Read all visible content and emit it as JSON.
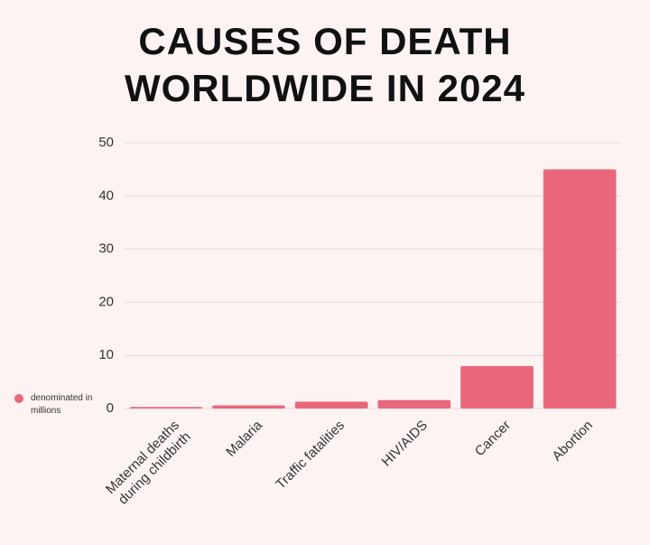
{
  "chart_data": {
    "type": "bar",
    "title": "CAUSES OF DEATH WORLDWIDE IN 2024",
    "categories": [
      "Maternal deaths during childbirth",
      "Malaria",
      "Traffic fatalities",
      "HIV/AIDS",
      "Cancer",
      "Abortion"
    ],
    "series": [
      {
        "name": "denominated in millions",
        "color": "#e8677a",
        "values": [
          0.3,
          0.6,
          1.3,
          1.6,
          8,
          45
        ]
      }
    ],
    "ylim": [
      0,
      50
    ],
    "yticks": [
      0,
      10,
      20,
      30,
      40,
      50
    ],
    "grid": true
  }
}
